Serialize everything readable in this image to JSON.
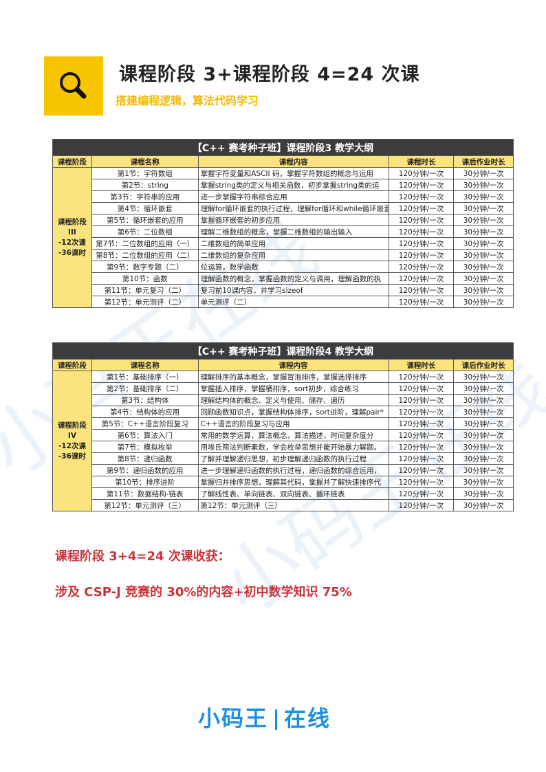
{
  "header": {
    "title": "课程阶段 3+课程阶段 4=24 次课",
    "subtitle": "搭建编程逻辑，算法代码学习",
    "icon": "search-icon",
    "accent": "#f6c500"
  },
  "columns": [
    "课程阶段",
    "课程名称",
    "课程内容",
    "课程时长",
    "课后作业时长"
  ],
  "table3": {
    "caption": "【C++ 赛考种子班】课程阶段3 教学大纲",
    "stage": [
      "课程阶段III",
      "-12次课",
      "-36课时"
    ],
    "rows": [
      {
        "name": "第1节：字符数组",
        "content": "掌握字符变量和ASCII 码，掌握字符数组的概念与运用",
        "dur": "120分钟/一次",
        "hw": "30分钟/一次"
      },
      {
        "name": "第2节：string",
        "content": "掌握string类的定义与相关函数，初步掌握string类的运",
        "dur": "120分钟/一次",
        "hw": "30分钟/一次"
      },
      {
        "name": "第3节：字符串的应用",
        "content": "进一步掌握字符串综合应用",
        "dur": "120分钟/一次",
        "hw": "30分钟/一次"
      },
      {
        "name": "第4节：循环嵌套",
        "content": "理解for循环嵌套的执行过程，理解for循环和while循环嵌套",
        "dur": "120分钟/一次",
        "hw": "30分钟/一次"
      },
      {
        "name": "第5节：循环嵌套的应用",
        "content": "掌握循环嵌套的初步应用",
        "dur": "120分钟/一次",
        "hw": "30分钟/一次"
      },
      {
        "name": "第6节：二位数组",
        "content": "理解二维数组的概念，掌握二维数组的输出输入",
        "dur": "120分钟/一次",
        "hw": "30分钟/一次"
      },
      {
        "name": "第7节：二位数组的应用（一）",
        "content": "二维数组的简单应用",
        "dur": "120分钟/一次",
        "hw": "30分钟/一次"
      },
      {
        "name": "第8节：二位数组的应用（二）",
        "content": "二维数组的复杂应用",
        "dur": "120分钟/一次",
        "hw": "30分钟/一次"
      },
      {
        "name": "第9节：数字专题（二）",
        "content": "位运算，数学函数",
        "dur": "120分钟/一次",
        "hw": "30分钟/一次"
      },
      {
        "name": "第10节：函数",
        "content": "理解函数的概念，掌握函数的定义与调用，理解函数的执",
        "dur": "120分钟/一次",
        "hw": "30分钟/一次"
      },
      {
        "name": "第11节：单元复习（二）",
        "content": "复习前10课内容，并学习sizeof",
        "dur": "120分钟/一次",
        "hw": "30分钟/一次"
      },
      {
        "name": "第12节：单元测评（二）",
        "content": "单元测评（二）",
        "dur": "120分钟/一次",
        "hw": "30分钟/一次"
      }
    ]
  },
  "table4": {
    "caption": "【C++ 赛考种子班】课程阶段4 教学大纲",
    "stage": [
      "课程阶段IV",
      "-12次课",
      "-36课时"
    ],
    "rows": [
      {
        "name": "第1节：基础排序（一）",
        "content": "理解排序的基本概念，掌握冒泡排序，掌握选择排序",
        "dur": "120分钟/一次",
        "hw": "30分钟/一次"
      },
      {
        "name": "第2节：基础排序（二）",
        "content": "掌握插入排序，掌握桶排序，sort初步，综合练习",
        "dur": "120分钟/一次",
        "hw": "30分钟/一次"
      },
      {
        "name": "第3节：结构体",
        "content": "理解结构体的概念、定义与使用、储存、遍历",
        "dur": "120分钟/一次",
        "hw": "30分钟/一次"
      },
      {
        "name": "第4节：结构体的应用",
        "content": "回顾函数知识点，掌握结构体排序，sort进阶，理解pair*",
        "dur": "120分钟/一次",
        "hw": "30分钟/一次"
      },
      {
        "name": "第5节：C++语言阶段复习",
        "content": "C++语言的阶段复习与应用",
        "dur": "120分钟/一次",
        "hw": "30分钟/一次"
      },
      {
        "name": "第6节：算法入门",
        "content": "常用的数学运算，算法概念，算法描述，时间复杂度分",
        "dur": "120分钟/一次",
        "hw": "30分钟/一次"
      },
      {
        "name": "第7节：模拟枚举",
        "content": "用埃氏筛法判断素数，学会枚举思想并能开始暴力解题。",
        "dur": "120分钟/一次",
        "hw": "30分钟/一次"
      },
      {
        "name": "第8节：递归函数",
        "content": "了解并理解递归思想，初步理解递归函数的执行过程",
        "dur": "120分钟/一次",
        "hw": "30分钟/一次"
      },
      {
        "name": "第9节：递归函数的应用",
        "content": "进一步理解递归函数的执行过程，递归函数的综合运用，",
        "dur": "120分钟/一次",
        "hw": "30分钟/一次"
      },
      {
        "name": "第10节：排序进阶",
        "content": "掌握归并排序思想，理解其代码，掌握并了解快速排序代",
        "dur": "120分钟/一次",
        "hw": "30分钟/一次"
      },
      {
        "name": "第11节：数据结构-链表",
        "content": "了解线性表、单向链表、双向链表、循环链表",
        "dur": "120分钟/一次",
        "hw": "30分钟/一次"
      },
      {
        "name": "第12节：单元测评（三）",
        "content": "第12节：单元测评（三）",
        "dur": "120分钟/一次",
        "hw": "30分钟/一次"
      }
    ]
  },
  "summary": {
    "line1": "课程阶段 3+4=24 次课收获：",
    "line2": "涉及 CSP-J 竞赛的 30%的内容+初中数学知识 75%",
    "color": "#c8333a"
  },
  "logo": {
    "left": "小码王",
    "right": "在线",
    "color": "#1e8fe0"
  },
  "watermark": "小码王在线"
}
